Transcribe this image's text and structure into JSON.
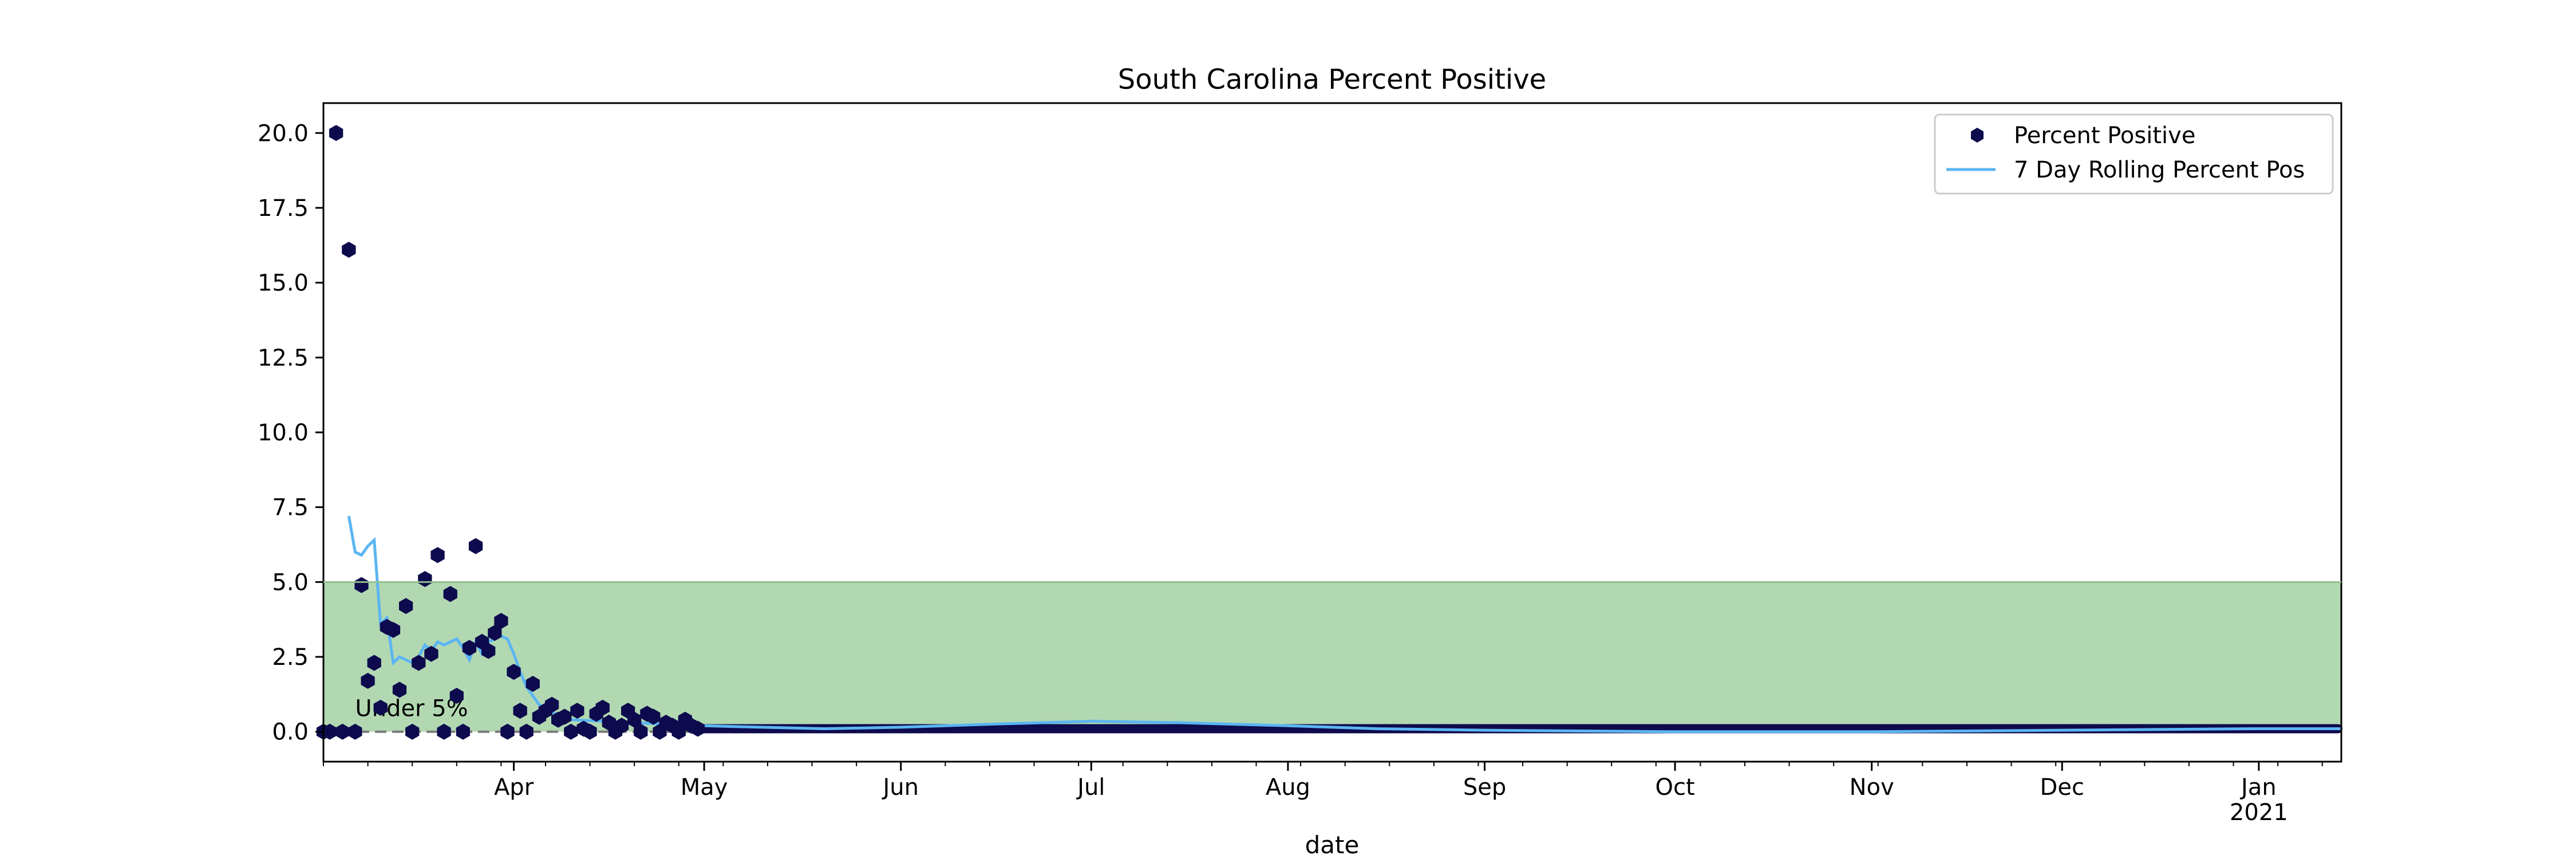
{
  "chart_data": {
    "type": "scatter",
    "title": "South Carolina Percent Positive",
    "xlabel": "date",
    "ylabel": "",
    "xlim": [
      "2020-03-02",
      "2021-01-14"
    ],
    "ylim": [
      -1.0,
      21.0
    ],
    "y_ticks": [
      "0.0",
      "2.5",
      "5.0",
      "7.5",
      "10.0",
      "12.5",
      "15.0",
      "17.5",
      "20.0"
    ],
    "x_ticks": [
      {
        "date": "2020-04-01",
        "label": "Apr"
      },
      {
        "date": "2020-05-01",
        "label": "May"
      },
      {
        "date": "2020-06-01",
        "label": "Jun"
      },
      {
        "date": "2020-07-01",
        "label": "Jul"
      },
      {
        "date": "2020-08-01",
        "label": "Aug"
      },
      {
        "date": "2020-09-01",
        "label": "Sep"
      },
      {
        "date": "2020-10-01",
        "label": "Oct"
      },
      {
        "date": "2020-11-01",
        "label": "Nov"
      },
      {
        "date": "2020-12-01",
        "label": "Dec"
      },
      {
        "date": "2021-01-01",
        "label": "Jan",
        "sublabel": "2021"
      }
    ],
    "band": {
      "y0": 0,
      "y1": 5,
      "color": "#b2d8b2",
      "label": "Under 5%"
    },
    "reference_line": {
      "y": 0,
      "style": "dashed",
      "color": "#7a7a7a"
    },
    "legend": {
      "position": "top-right"
    },
    "series": [
      {
        "name": "Percent Positive",
        "kind": "scatter",
        "marker": "hexagon",
        "color": "#0d0a4d",
        "points": [
          {
            "x": "2020-03-02",
            "y": 0
          },
          {
            "x": "2020-03-03",
            "y": 0
          },
          {
            "x": "2020-03-04",
            "y": 20.0
          },
          {
            "x": "2020-03-05",
            "y": 0
          },
          {
            "x": "2020-03-06",
            "y": 16.1
          },
          {
            "x": "2020-03-07",
            "y": 0
          },
          {
            "x": "2020-03-08",
            "y": 4.9
          },
          {
            "x": "2020-03-09",
            "y": 1.7
          },
          {
            "x": "2020-03-10",
            "y": 2.3
          },
          {
            "x": "2020-03-11",
            "y": 0.8
          },
          {
            "x": "2020-03-12",
            "y": 3.5
          },
          {
            "x": "2020-03-13",
            "y": 3.4
          },
          {
            "x": "2020-03-14",
            "y": 1.4
          },
          {
            "x": "2020-03-15",
            "y": 4.2
          },
          {
            "x": "2020-03-16",
            "y": 0
          },
          {
            "x": "2020-03-17",
            "y": 2.3
          },
          {
            "x": "2020-03-18",
            "y": 5.1
          },
          {
            "x": "2020-03-19",
            "y": 2.6
          },
          {
            "x": "2020-03-20",
            "y": 5.9
          },
          {
            "x": "2020-03-21",
            "y": 0
          },
          {
            "x": "2020-03-22",
            "y": 4.6
          },
          {
            "x": "2020-03-23",
            "y": 1.2
          },
          {
            "x": "2020-03-24",
            "y": 0
          },
          {
            "x": "2020-03-25",
            "y": 2.8
          },
          {
            "x": "2020-03-26",
            "y": 6.2
          },
          {
            "x": "2020-03-27",
            "y": 3.0
          },
          {
            "x": "2020-03-28",
            "y": 2.7
          },
          {
            "x": "2020-03-29",
            "y": 3.3
          },
          {
            "x": "2020-03-30",
            "y": 3.7
          },
          {
            "x": "2020-03-31",
            "y": 0
          },
          {
            "x": "2020-04-01",
            "y": 2.0
          },
          {
            "x": "2020-04-02",
            "y": 0.7
          },
          {
            "x": "2020-04-03",
            "y": 0
          },
          {
            "x": "2020-04-04",
            "y": 1.6
          },
          {
            "x": "2020-04-05",
            "y": 0.5
          },
          {
            "x": "2020-04-06",
            "y": 0.7
          },
          {
            "x": "2020-04-07",
            "y": 0.9
          },
          {
            "x": "2020-04-08",
            "y": 0.4
          },
          {
            "x": "2020-04-09",
            "y": 0.5
          },
          {
            "x": "2020-04-10",
            "y": 0
          },
          {
            "x": "2020-04-11",
            "y": 0.7
          },
          {
            "x": "2020-04-12",
            "y": 0.1
          },
          {
            "x": "2020-04-13",
            "y": 0
          },
          {
            "x": "2020-04-14",
            "y": 0.6
          },
          {
            "x": "2020-04-15",
            "y": 0.8
          },
          {
            "x": "2020-04-16",
            "y": 0.3
          },
          {
            "x": "2020-04-17",
            "y": 0
          },
          {
            "x": "2020-04-18",
            "y": 0.2
          },
          {
            "x": "2020-04-19",
            "y": 0.7
          },
          {
            "x": "2020-04-20",
            "y": 0.4
          },
          {
            "x": "2020-04-21",
            "y": 0
          },
          {
            "x": "2020-04-22",
            "y": 0.6
          },
          {
            "x": "2020-04-23",
            "y": 0.5
          },
          {
            "x": "2020-04-24",
            "y": 0
          },
          {
            "x": "2020-04-25",
            "y": 0.3
          },
          {
            "x": "2020-04-26",
            "y": 0.2
          },
          {
            "x": "2020-04-27",
            "y": 0
          },
          {
            "x": "2020-04-28",
            "y": 0.4
          },
          {
            "x": "2020-04-29",
            "y": 0.2
          },
          {
            "x": "2020-04-30",
            "y": 0.1
          }
        ]
      },
      {
        "name": "7 Day Rolling Percent Pos",
        "kind": "line",
        "color": "#5bb5f2",
        "points": [
          {
            "x": "2020-03-06",
            "y": 7.2
          },
          {
            "x": "2020-03-07",
            "y": 6.0
          },
          {
            "x": "2020-03-08",
            "y": 5.9
          },
          {
            "x": "2020-03-09",
            "y": 6.2
          },
          {
            "x": "2020-03-10",
            "y": 6.4
          },
          {
            "x": "2020-03-11",
            "y": 3.6
          },
          {
            "x": "2020-03-12",
            "y": 3.8
          },
          {
            "x": "2020-03-13",
            "y": 2.3
          },
          {
            "x": "2020-03-14",
            "y": 2.5
          },
          {
            "x": "2020-03-15",
            "y": 2.4
          },
          {
            "x": "2020-03-16",
            "y": 2.3
          },
          {
            "x": "2020-03-17",
            "y": 2.5
          },
          {
            "x": "2020-03-18",
            "y": 2.9
          },
          {
            "x": "2020-03-19",
            "y": 2.7
          },
          {
            "x": "2020-03-20",
            "y": 3.0
          },
          {
            "x": "2020-03-21",
            "y": 2.9
          },
          {
            "x": "2020-03-22",
            "y": 3.0
          },
          {
            "x": "2020-03-23",
            "y": 3.1
          },
          {
            "x": "2020-03-24",
            "y": 2.8
          },
          {
            "x": "2020-03-25",
            "y": 2.4
          },
          {
            "x": "2020-03-26",
            "y": 3.0
          },
          {
            "x": "2020-03-27",
            "y": 2.6
          },
          {
            "x": "2020-03-28",
            "y": 3.0
          },
          {
            "x": "2020-03-29",
            "y": 3.1
          },
          {
            "x": "2020-03-30",
            "y": 3.2
          },
          {
            "x": "2020-03-31",
            "y": 3.1
          },
          {
            "x": "2020-04-01",
            "y": 2.6
          },
          {
            "x": "2020-04-02",
            "y": 2.0
          },
          {
            "x": "2020-04-03",
            "y": 1.5
          },
          {
            "x": "2020-04-04",
            "y": 1.2
          },
          {
            "x": "2020-04-05",
            "y": 0.9
          },
          {
            "x": "2020-04-06",
            "y": 0.8
          },
          {
            "x": "2020-04-07",
            "y": 0.7
          },
          {
            "x": "2020-04-08",
            "y": 0.5
          },
          {
            "x": "2020-04-10",
            "y": 0.4
          },
          {
            "x": "2020-04-15",
            "y": 0.35
          },
          {
            "x": "2020-04-20",
            "y": 0.3
          },
          {
            "x": "2020-04-25",
            "y": 0.25
          },
          {
            "x": "2020-05-01",
            "y": 0.2
          },
          {
            "x": "2020-05-10",
            "y": 0.15
          },
          {
            "x": "2020-05-20",
            "y": 0.1
          },
          {
            "x": "2020-06-01",
            "y": 0.15
          },
          {
            "x": "2020-06-15",
            "y": 0.25
          },
          {
            "x": "2020-07-01",
            "y": 0.35
          },
          {
            "x": "2020-07-15",
            "y": 0.3
          },
          {
            "x": "2020-08-01",
            "y": 0.2
          },
          {
            "x": "2020-08-15",
            "y": 0.1
          },
          {
            "x": "2020-09-01",
            "y": 0.05
          },
          {
            "x": "2020-10-01",
            "y": 0.0
          },
          {
            "x": "2020-11-01",
            "y": 0.0
          },
          {
            "x": "2020-12-01",
            "y": 0.05
          },
          {
            "x": "2021-01-01",
            "y": 0.1
          },
          {
            "x": "2021-01-14",
            "y": 0.1
          }
        ]
      }
    ]
  }
}
